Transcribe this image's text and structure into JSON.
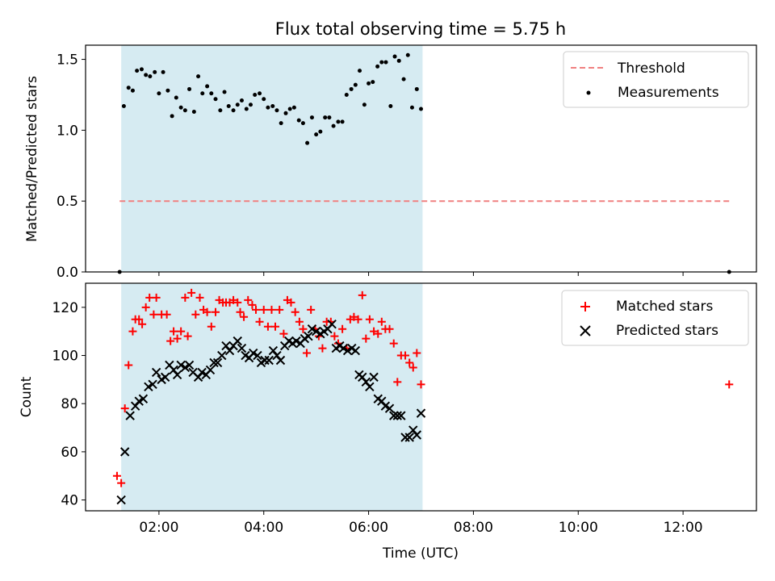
{
  "title": "Flux total observing time = 5.75 h",
  "colors": {
    "shade": "#add8e6",
    "threshold": "#f08080",
    "measurements": "#000000",
    "matched": "#ff0000",
    "predicted": "#000000"
  },
  "chart_data": [
    {
      "type": "scatter",
      "ylabel": "Matched/Predicted stars",
      "xlim_hours": [
        0.6,
        13.4
      ],
      "ylim": [
        0,
        1.6
      ],
      "yticks": [
        0.0,
        0.5,
        1.0,
        1.5
      ],
      "ytick_labels": [
        "0.0",
        "0.5",
        "1.0",
        "1.5"
      ],
      "shaded_span_hours": [
        1.28,
        7.03
      ],
      "threshold": {
        "name": "Threshold",
        "value": 0.5,
        "x_hours": [
          1.25,
          12.9
        ]
      },
      "legend": [
        "Threshold",
        "Measurements"
      ],
      "legend_position": "top-right",
      "measurements": {
        "name": "Measurements",
        "x_hours": [
          1.25,
          1.33,
          1.42,
          1.5,
          1.58,
          1.67,
          1.75,
          1.83,
          1.92,
          2.0,
          2.08,
          2.17,
          2.25,
          2.33,
          2.42,
          2.5,
          2.58,
          2.67,
          2.75,
          2.83,
          2.92,
          3.0,
          3.08,
          3.17,
          3.25,
          3.33,
          3.42,
          3.5,
          3.58,
          3.67,
          3.75,
          3.83,
          3.92,
          4.0,
          4.08,
          4.17,
          4.25,
          4.33,
          4.42,
          4.5,
          4.58,
          4.67,
          4.75,
          4.83,
          4.92,
          5.0,
          5.08,
          5.17,
          5.25,
          5.33,
          5.42,
          5.5,
          5.58,
          5.67,
          5.75,
          5.83,
          5.92,
          6.0,
          6.08,
          6.17,
          6.25,
          6.33,
          6.42,
          6.5,
          6.58,
          6.67,
          6.75,
          6.83,
          6.92,
          7.0,
          12.88
        ],
        "values": [
          0.0,
          1.17,
          1.3,
          1.28,
          1.42,
          1.43,
          1.39,
          1.38,
          1.41,
          1.26,
          1.41,
          1.28,
          1.1,
          1.23,
          1.16,
          1.14,
          1.29,
          1.13,
          1.38,
          1.26,
          1.31,
          1.26,
          1.22,
          1.14,
          1.27,
          1.17,
          1.14,
          1.18,
          1.21,
          1.15,
          1.18,
          1.25,
          1.26,
          1.22,
          1.16,
          1.17,
          1.14,
          1.05,
          1.12,
          1.15,
          1.16,
          1.07,
          1.05,
          0.91,
          1.09,
          0.97,
          0.99,
          1.09,
          1.09,
          1.03,
          1.06,
          1.06,
          1.25,
          1.29,
          1.32,
          1.42,
          1.18,
          1.33,
          1.34,
          1.45,
          1.48,
          1.48,
          1.17,
          1.52,
          1.49,
          1.36,
          1.53,
          1.16,
          1.29,
          1.15,
          0.0
        ]
      }
    },
    {
      "type": "scatter",
      "xlabel": "Time (UTC)",
      "ylabel": "Count",
      "xlim_hours": [
        0.6,
        13.4
      ],
      "ylim": [
        35.5,
        130
      ],
      "yticks": [
        40,
        60,
        80,
        100,
        120
      ],
      "ytick_labels": [
        "40",
        "60",
        "80",
        "100",
        "120"
      ],
      "xticks_hours": [
        2,
        4,
        6,
        8,
        10,
        12
      ],
      "xtick_labels": [
        "02:00",
        "04:00",
        "06:00",
        "08:00",
        "10:00",
        "12:00"
      ],
      "shaded_span_hours": [
        1.28,
        7.03
      ],
      "legend": [
        "Matched stars",
        "Predicted stars"
      ],
      "legend_position": "top-right",
      "series": [
        {
          "name": "Matched stars",
          "marker": "plus",
          "x_hours": [
            1.2,
            1.28,
            1.35,
            1.42,
            1.5,
            1.55,
            1.62,
            1.68,
            1.75,
            1.82,
            1.9,
            1.95,
            2.05,
            2.15,
            2.22,
            2.28,
            2.35,
            2.42,
            2.5,
            2.55,
            2.62,
            2.7,
            2.78,
            2.85,
            2.92,
            3.0,
            3.08,
            3.15,
            3.22,
            3.28,
            3.35,
            3.42,
            3.5,
            3.55,
            3.62,
            3.7,
            3.78,
            3.85,
            3.92,
            4.0,
            4.08,
            4.15,
            4.22,
            4.3,
            4.38,
            4.45,
            4.52,
            4.6,
            4.68,
            4.75,
            4.82,
            4.9,
            4.98,
            5.05,
            5.12,
            5.2,
            5.28,
            5.35,
            5.42,
            5.5,
            5.58,
            5.65,
            5.72,
            5.8,
            5.88,
            5.95,
            6.02,
            6.1,
            6.18,
            6.25,
            6.32,
            6.4,
            6.48,
            6.55,
            6.62,
            6.7,
            6.78,
            6.85,
            6.92,
            7.0,
            12.88
          ],
          "values": [
            50,
            47,
            78,
            96,
            110,
            115,
            115,
            113,
            120,
            124,
            117,
            124,
            117,
            117,
            106,
            110,
            107,
            110,
            124,
            108,
            126,
            117,
            124,
            119,
            118,
            112,
            118,
            123,
            122,
            122,
            122,
            123,
            122,
            118,
            116,
            123,
            121,
            119,
            114,
            119,
            112,
            119,
            112,
            119,
            109,
            123,
            122,
            118,
            114,
            111,
            101,
            119,
            111,
            108,
            103,
            114,
            114,
            108,
            105,
            111,
            103,
            115,
            116,
            115,
            125,
            107,
            115,
            110,
            109,
            114,
            111,
            111,
            105,
            89,
            100,
            100,
            97,
            95,
            101,
            88,
            88
          ]
        },
        {
          "name": "Predicted stars",
          "marker": "x",
          "x_hours": [
            1.28,
            1.35,
            1.45,
            1.55,
            1.62,
            1.7,
            1.8,
            1.88,
            1.95,
            2.05,
            2.12,
            2.2,
            2.28,
            2.35,
            2.42,
            2.5,
            2.58,
            2.65,
            2.75,
            2.82,
            2.9,
            2.98,
            3.05,
            3.12,
            3.2,
            3.28,
            3.35,
            3.42,
            3.5,
            3.58,
            3.65,
            3.72,
            3.8,
            3.88,
            3.95,
            4.02,
            4.1,
            4.18,
            4.25,
            4.32,
            4.4,
            4.48,
            4.55,
            4.62,
            4.7,
            4.78,
            4.85,
            4.92,
            5.0,
            5.08,
            5.15,
            5.22,
            5.3,
            5.38,
            5.45,
            5.52,
            5.6,
            5.68,
            5.75,
            5.82,
            5.88,
            5.95,
            6.02,
            6.1,
            6.18,
            6.25,
            6.32,
            6.4,
            6.48,
            6.55,
            6.62,
            6.7,
            6.78,
            6.85,
            6.92,
            7.0
          ],
          "values": [
            40,
            60,
            75,
            79,
            81,
            82,
            87,
            88,
            93,
            90,
            91,
            96,
            94,
            92,
            96,
            95,
            96,
            93,
            91,
            93,
            92,
            94,
            97,
            97,
            100,
            104,
            102,
            104,
            106,
            103,
            100,
            99,
            101,
            100,
            97,
            98,
            98,
            102,
            100,
            98,
            104,
            106,
            105,
            106,
            105,
            107,
            108,
            111,
            110,
            109,
            110,
            111,
            113,
            103,
            104,
            103,
            102,
            103,
            102,
            92,
            91,
            89,
            87,
            91,
            82,
            81,
            79,
            78,
            75,
            75,
            75,
            66,
            66,
            69,
            67,
            76
          ]
        }
      ]
    }
  ]
}
